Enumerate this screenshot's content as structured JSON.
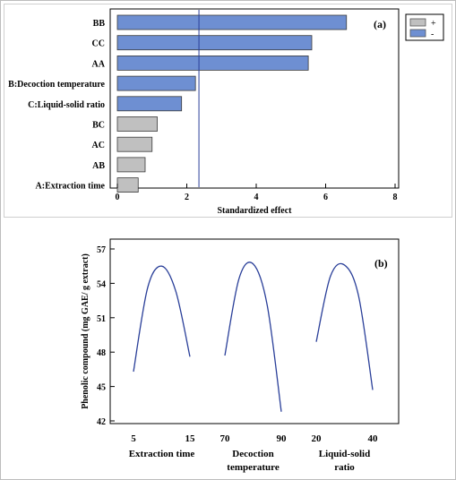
{
  "chart_data": [
    {
      "panel_label": "(a)",
      "type": "bar",
      "orientation": "horizontal",
      "categories": [
        "BB",
        "CC",
        "AA",
        "B:Decoction temperature",
        "C:Liquid-solid ratio",
        "BC",
        "AC",
        "AB",
        "A:Extraction time"
      ],
      "values": [
        6.6,
        5.6,
        5.5,
        2.25,
        1.85,
        1.15,
        1.0,
        0.8,
        0.6
      ],
      "signs": [
        "-",
        "-",
        "-",
        "-",
        "-",
        "+",
        "+",
        "+",
        "+"
      ],
      "xlabel": "Standardized effect",
      "xlim": [
        0,
        8
      ],
      "xticks": [
        "0",
        "2",
        "4",
        "6",
        "8"
      ],
      "reference_line": 2.35,
      "legend": [
        {
          "label": "+",
          "color": "#c0c0c0"
        },
        {
          "label": "-",
          "color": "#6e8fd2"
        }
      ],
      "legend_position": "top-right"
    },
    {
      "panel_label": "(b)",
      "type": "line",
      "ylabel": "Phenolic compound (mg GAE/ g extract)",
      "ylim": [
        42,
        57
      ],
      "yticks": [
        "42",
        "45",
        "48",
        "51",
        "54",
        "57"
      ],
      "line_color": "#2a3f99",
      "subplots": [
        {
          "label": "Extraction time",
          "label_lines": [
            "Extraction time"
          ],
          "xticks": [
            "5",
            "15"
          ],
          "x": [
            5,
            7.5,
            10,
            12.5,
            15
          ],
          "y": [
            46.3,
            53.6,
            55.5,
            53.3,
            47.6
          ]
        },
        {
          "label": "Decoction temperature",
          "label_lines": [
            "Decoction",
            "temperature"
          ],
          "xticks": [
            "70",
            "90"
          ],
          "x": [
            70,
            75,
            80,
            85,
            90
          ],
          "y": [
            47.7,
            54.4,
            55.7,
            52.1,
            42.8
          ]
        },
        {
          "label": "Liquid-solid ratio",
          "label_lines": [
            "Liquid-solid",
            "ratio"
          ],
          "xticks": [
            "20",
            "40"
          ],
          "x": [
            20,
            25,
            30,
            35,
            40
          ],
          "y": [
            48.9,
            54.6,
            55.6,
            52.9,
            44.7
          ]
        }
      ]
    }
  ]
}
